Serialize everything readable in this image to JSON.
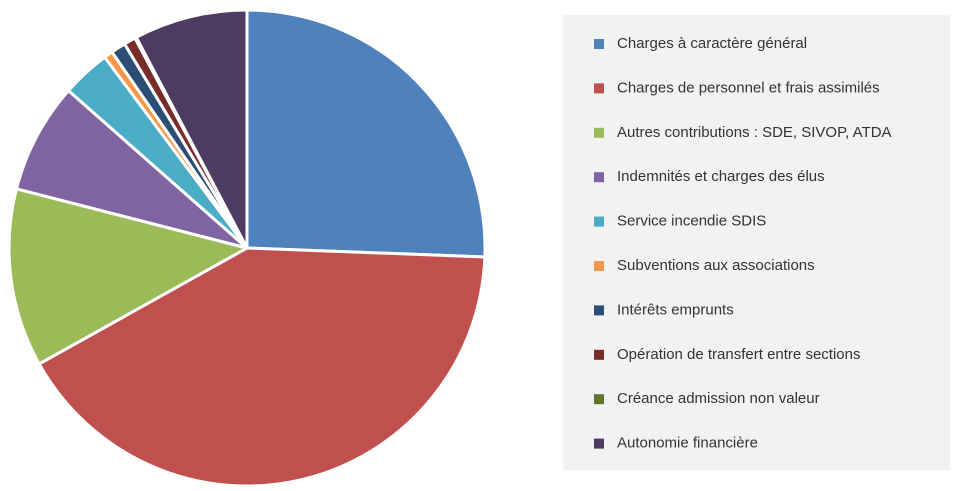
{
  "chart_data": {
    "type": "pie",
    "categories": [
      "Charges à caractère général",
      "Charges de personnel et frais assimilés",
      "Autres contributions : SDE, SIVOP, ATDA",
      "Indemnités et charges des élus",
      "Service incendie SDIS",
      "Subventions aux associations",
      "Intérêts emprunts",
      "Opération de transfert entre sections",
      "Créance admission non valeur",
      "Autonomie financière"
    ],
    "values": [
      25.6,
      41.3,
      12.1,
      7.5,
      3.3,
      0.6,
      1.0,
      0.8,
      0.1,
      7.7
    ],
    "colors": [
      "#4f81bd",
      "#c0504d",
      "#9bbb59",
      "#8064a2",
      "#4bacc6",
      "#f79646",
      "#2c4d75",
      "#772c2a",
      "#5f7530",
      "#4d3b62"
    ],
    "legend": "right"
  }
}
